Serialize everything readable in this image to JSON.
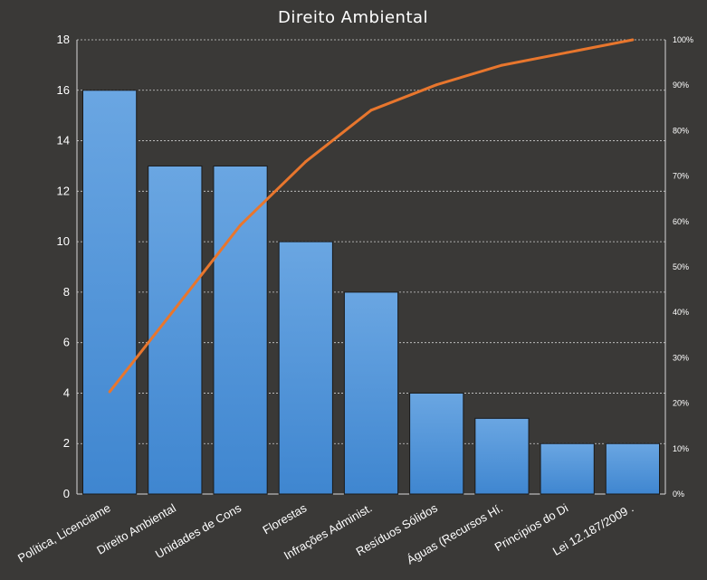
{
  "chart_data": {
    "type": "bar",
    "title": "Direito Ambiental",
    "categories": [
      "Política, Licenciame",
      "Direito Ambiental",
      "Unidades de Cons",
      "Florestas",
      "Infrações Administ.",
      "Resíduos Sólidos",
      "Águas (Recursos Hí.",
      "Princípios do Di",
      "Lei 12.187/2009 ."
    ],
    "series": [
      {
        "type": "bar",
        "values": [
          16,
          13,
          13,
          10,
          8,
          4,
          3,
          2,
          2
        ]
      },
      {
        "type": "line",
        "axis": "secondary",
        "values": [
          22.5,
          40.8,
          59.2,
          73.2,
          84.5,
          90.1,
          94.4,
          97.2,
          100
        ]
      }
    ],
    "ylim": [
      0,
      18
    ],
    "yticks": [
      "0",
      "2",
      "4",
      "6",
      "8",
      "10",
      "12",
      "14",
      "16",
      "18"
    ],
    "y2lim": [
      0,
      100
    ],
    "y2ticks": [
      "0%",
      "10%",
      "20%",
      "30%",
      "40%",
      "50%",
      "60%",
      "70%",
      "80%",
      "90%",
      "100%"
    ],
    "grid": "horizontal dashed",
    "colors": {
      "background": "#3a3937",
      "bar": "#4b8fd6",
      "bar_light": "#6aa6e2",
      "line": "#e8762d",
      "grid": "#cfcfcf",
      "text": "#ffffff"
    }
  }
}
